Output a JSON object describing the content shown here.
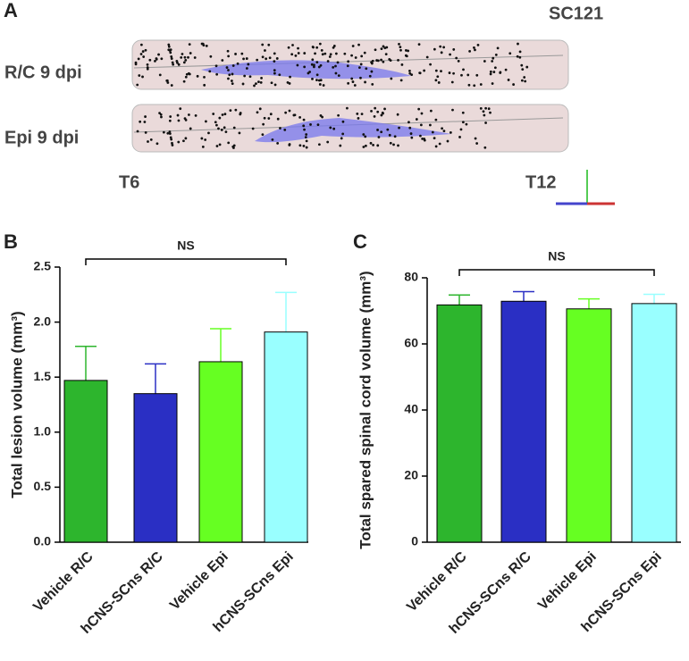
{
  "panel_a": {
    "label": "A",
    "sample": "SC121",
    "rows": [
      "R/C 9 dpi",
      "Epi 9 dpi"
    ],
    "left_end": "T6",
    "right_end": "T12"
  },
  "chart_data": [
    {
      "type": "bar",
      "panel_label": "B",
      "ylabel": "Total lesion volume (mm³)",
      "categories": [
        "Vehicle R/C",
        "hCNS-SCns R/C",
        "Vehicle Epi",
        "hCNS-SCns Epi"
      ],
      "values": [
        1.47,
        1.35,
        1.64,
        1.91
      ],
      "errors": [
        0.31,
        0.27,
        0.3,
        0.36
      ],
      "colors": [
        "#2db52d",
        "#2a2fc4",
        "#66ff22",
        "#99ffff"
      ],
      "ylim": [
        0,
        2.5
      ],
      "yticks": [
        {
          "value": 0,
          "label": "0.0"
        },
        {
          "value": 0.5,
          "label": "0.5"
        },
        {
          "value": 1,
          "label": "1.0"
        },
        {
          "value": 1.5,
          "label": "1.5"
        },
        {
          "value": 2,
          "label": "2.0"
        },
        {
          "value": 2.5,
          "label": "2.5"
        }
      ],
      "annotation": "NS"
    },
    {
      "type": "bar",
      "panel_label": "C",
      "ylabel": "Total spared spinal cord volume (mm³)",
      "categories": [
        "Vehicle R/C",
        "hCNS-SCns R/C",
        "Vehicle Epi",
        "hCNS-SCns Epi"
      ],
      "values": [
        71.8,
        72.9,
        70.6,
        72.2
      ],
      "errors": [
        3.0,
        2.9,
        3.0,
        2.8
      ],
      "colors": [
        "#2db52d",
        "#2a2fc4",
        "#66ff22",
        "#99ffff"
      ],
      "ylim": [
        0,
        80
      ],
      "yticks": [
        0,
        20,
        40,
        60,
        80
      ],
      "annotation": "NS"
    }
  ]
}
